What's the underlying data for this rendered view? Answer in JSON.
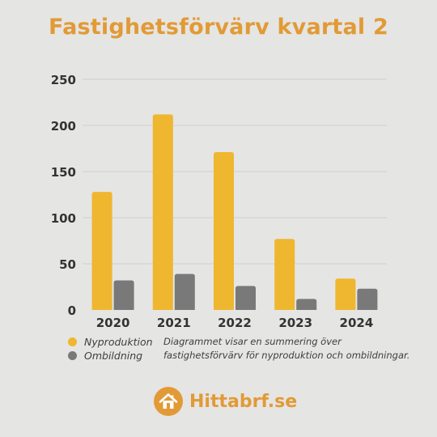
{
  "chart_data": {
    "type": "bar",
    "title": "Fastighetsförvärv kvartal 2",
    "categories": [
      "2020",
      "2021",
      "2022",
      "2023",
      "2024"
    ],
    "series": [
      {
        "name": "Nyproduktion",
        "color": "#efb630",
        "values": [
          128,
          212,
          171,
          77,
          34
        ]
      },
      {
        "name": "Ombildning",
        "color": "#797979",
        "values": [
          32,
          39,
          26,
          12,
          23
        ]
      }
    ],
    "y_ticks": [
      0,
      50,
      100,
      150,
      200,
      250
    ],
    "ylim": [
      0,
      250
    ],
    "grid": true,
    "legend_position": "bottom-left"
  },
  "note": "Diagrammet visar en summering över fastighetsförvärv för nyproduktion och ombildningar.",
  "brand": {
    "name": "Hittabrf.se",
    "icon": "house-icon",
    "color": "#e29a36"
  }
}
